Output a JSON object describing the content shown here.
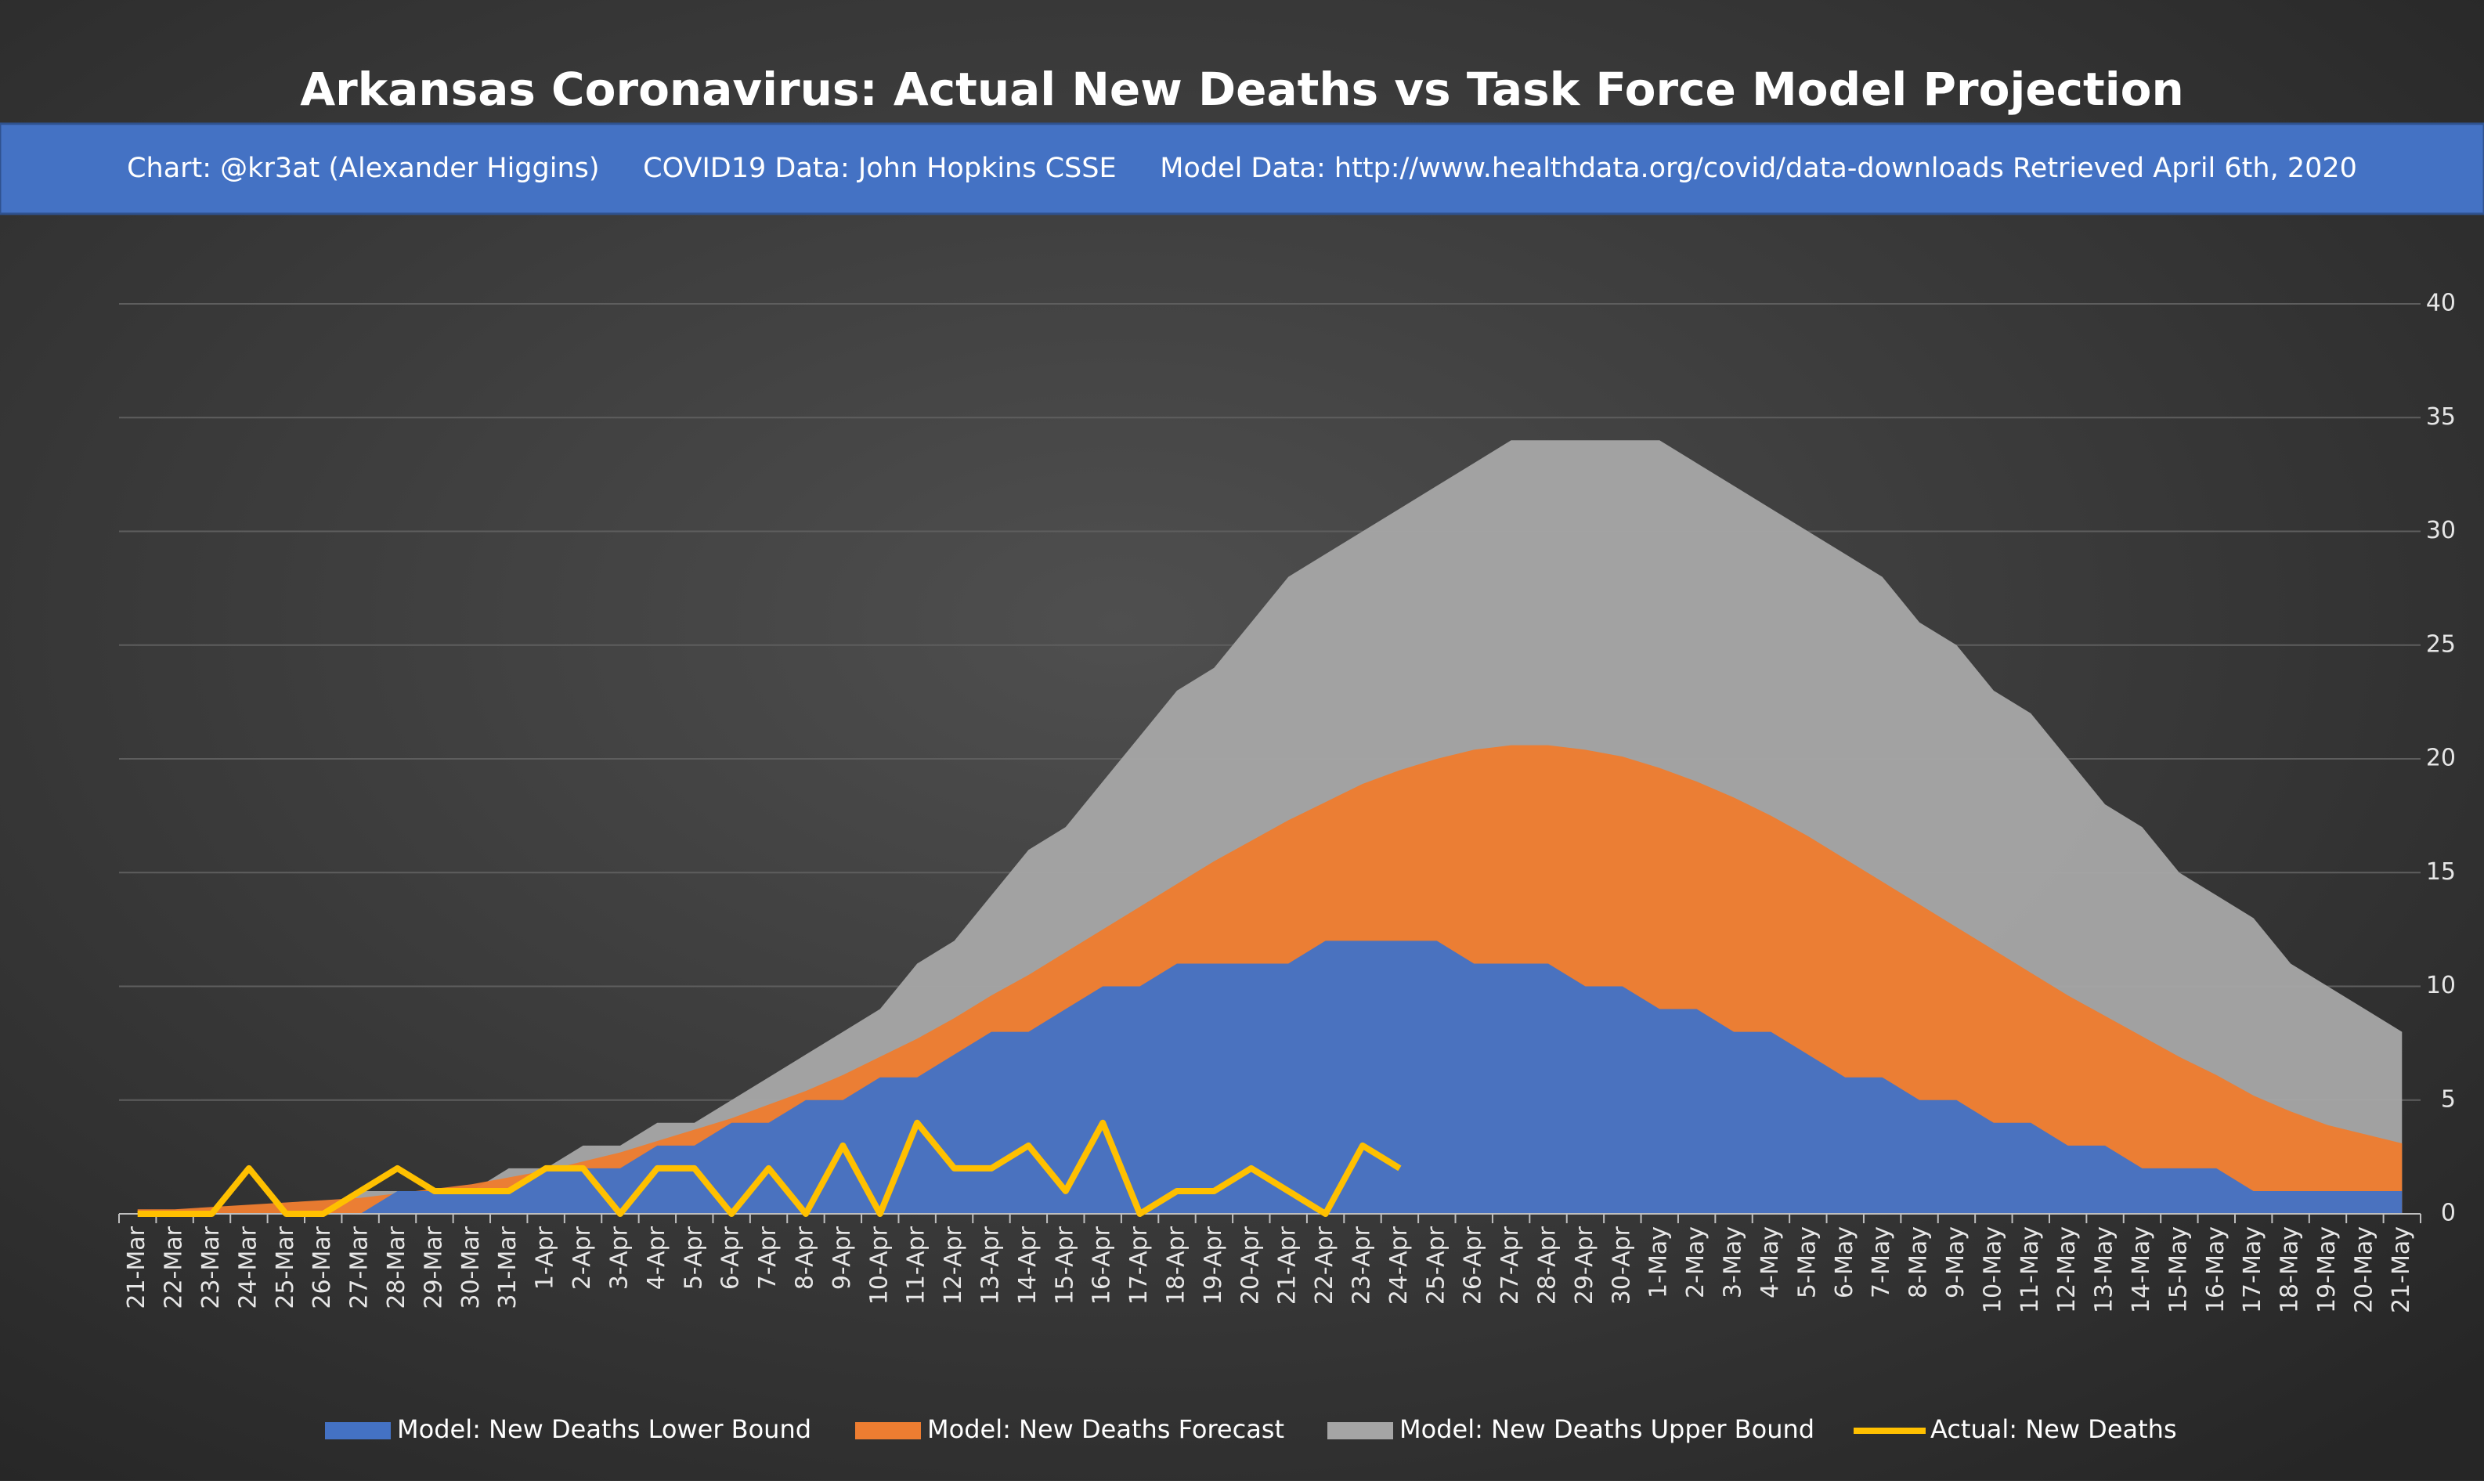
{
  "chart_data": {
    "type": "area-line",
    "title": "Arkansas Coronavirus: Actual New Deaths vs Task Force Model Projection",
    "subtitle": "Chart: @kr3at (Alexander Higgins)     COVID19 Data: John Hopkins CSSE     Model Data: http://www.healthdata.org/covid/data-downloads Retrieved April 6th, 2020",
    "categories": [
      "21-Mar",
      "22-Mar",
      "23-Mar",
      "24-Mar",
      "25-Mar",
      "26-Mar",
      "27-Mar",
      "28-Mar",
      "29-Mar",
      "30-Mar",
      "31-Mar",
      "1-Apr",
      "2-Apr",
      "3-Apr",
      "4-Apr",
      "5-Apr",
      "6-Apr",
      "7-Apr",
      "8-Apr",
      "9-Apr",
      "10-Apr",
      "11-Apr",
      "12-Apr",
      "13-Apr",
      "14-Apr",
      "15-Apr",
      "16-Apr",
      "17-Apr",
      "18-Apr",
      "19-Apr",
      "20-Apr",
      "21-Apr",
      "22-Apr",
      "23-Apr",
      "24-Apr",
      "25-Apr",
      "26-Apr",
      "27-Apr",
      "28-Apr",
      "29-Apr",
      "30-Apr",
      "1-May",
      "2-May",
      "3-May",
      "4-May",
      "5-May",
      "6-May",
      "7-May",
      "8-May",
      "9-May",
      "10-May",
      "11-May",
      "12-May",
      "13-May",
      "14-May",
      "15-May",
      "16-May",
      "17-May",
      "18-May",
      "19-May",
      "20-May",
      "21-May"
    ],
    "series": [
      {
        "name": "Model: New Deaths Lower Bound",
        "color": "#4472c4",
        "kind": "area",
        "values": [
          0,
          0,
          0,
          0,
          0,
          0,
          0,
          1,
          1,
          1,
          1,
          2,
          2,
          2,
          3,
          3,
          4,
          4,
          5,
          5,
          6,
          6,
          7,
          8,
          8,
          9,
          10,
          10,
          11,
          11,
          11,
          11,
          12,
          12,
          12,
          12,
          11,
          11,
          11,
          10,
          10,
          9,
          9,
          8,
          8,
          7,
          6,
          6,
          5,
          5,
          4,
          4,
          3,
          3,
          2,
          2,
          2,
          1,
          1,
          1,
          1,
          1
        ]
      },
      {
        "name": "Model: New Deaths Forecast",
        "color": "#ed7d31",
        "kind": "area",
        "values": [
          0.2,
          0.2,
          0.3,
          0.4,
          0.5,
          0.6,
          0.7,
          0.9,
          1.1,
          1.3,
          1.6,
          1.9,
          2.3,
          2.7,
          3.2,
          3.7,
          4.2,
          4.8,
          5.4,
          6.1,
          6.9,
          7.7,
          8.6,
          9.6,
          10.5,
          11.5,
          12.5,
          13.5,
          14.5,
          15.5,
          16.4,
          17.3,
          18.1,
          18.9,
          19.5,
          20.0,
          20.4,
          20.6,
          20.6,
          20.4,
          20.1,
          19.6,
          19.0,
          18.3,
          17.5,
          16.6,
          15.6,
          14.6,
          13.6,
          12.6,
          11.6,
          10.6,
          9.6,
          8.7,
          7.8,
          6.9,
          6.1,
          5.2,
          4.5,
          3.9,
          3.5,
          3.1
        ]
      },
      {
        "name": "Model: New Deaths Upper Bound",
        "color": "#a5a5a5",
        "kind": "area",
        "values": [
          0,
          0,
          0,
          0,
          0,
          0,
          1,
          1,
          1,
          1,
          2,
          2,
          3,
          3,
          4,
          4,
          5,
          6,
          7,
          8,
          9,
          11,
          12,
          14,
          16,
          17,
          19,
          21,
          23,
          24,
          26,
          28,
          29,
          30,
          31,
          32,
          33,
          34,
          34,
          34,
          34,
          34,
          33,
          32,
          31,
          30,
          29,
          28,
          26,
          25,
          23,
          22,
          20,
          18,
          17,
          15,
          14,
          13,
          11,
          10,
          9,
          8
        ]
      },
      {
        "name": "Actual: New Deaths",
        "color": "#ffc000",
        "kind": "line",
        "values": [
          0,
          0,
          0,
          2,
          0,
          0,
          1,
          2,
          1,
          1,
          1,
          2,
          2,
          0,
          2,
          2,
          0,
          2,
          0,
          3,
          0,
          4,
          2,
          2,
          3,
          1,
          4,
          0,
          1,
          1,
          2,
          1,
          0,
          3,
          2,
          null,
          null,
          null,
          null,
          null,
          null,
          null,
          null,
          null,
          null,
          null,
          null,
          null,
          null,
          null,
          null,
          null,
          null,
          null,
          null,
          null,
          null,
          null,
          null,
          null,
          null,
          null
        ]
      }
    ],
    "ylim": [
      0,
      40
    ],
    "yticks": [
      0,
      5,
      10,
      15,
      20,
      25,
      30,
      35,
      40
    ],
    "grid": true,
    "legend": "bottom"
  }
}
